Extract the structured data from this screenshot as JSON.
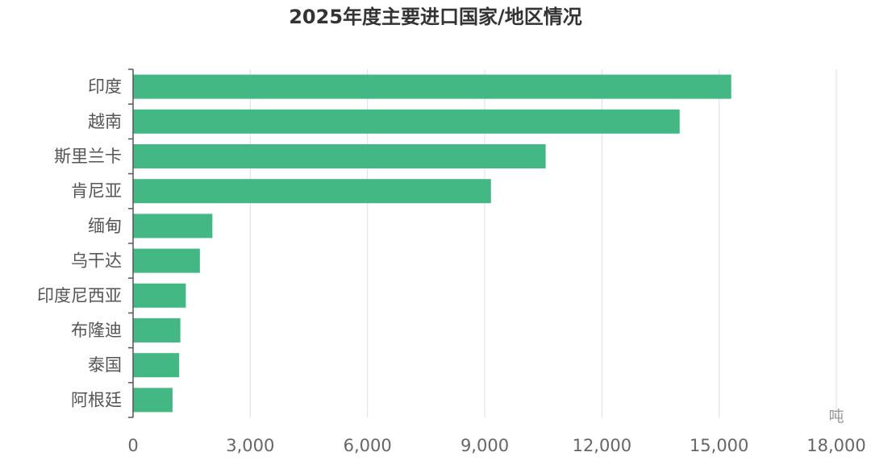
{
  "chart_data": {
    "type": "bar",
    "orientation": "horizontal",
    "title": "2025年度主要进口国家/地区情况",
    "categories": [
      "印度",
      "越南",
      "斯里兰卡",
      "肯尼亚",
      "缅甸",
      "乌干达",
      "印度尼西亚",
      "布隆迪",
      "泰国",
      "阿根廷"
    ],
    "values": [
      15300,
      13980,
      10550,
      9150,
      2020,
      1700,
      1340,
      1200,
      1170,
      1000
    ],
    "xlabel": "",
    "ylabel": "",
    "x_unit": "吨",
    "xlim": [
      0,
      18000
    ],
    "x_ticks": [
      0,
      3000,
      6000,
      9000,
      12000,
      15000,
      18000
    ],
    "x_tick_labels": [
      "0",
      "3,000",
      "6,000",
      "9,000",
      "12,000",
      "15,000",
      "18,000"
    ],
    "grid": "vertical",
    "bar_color": "#43b884",
    "grid_color": "#dcdce8",
    "axis_color": "#555555"
  }
}
